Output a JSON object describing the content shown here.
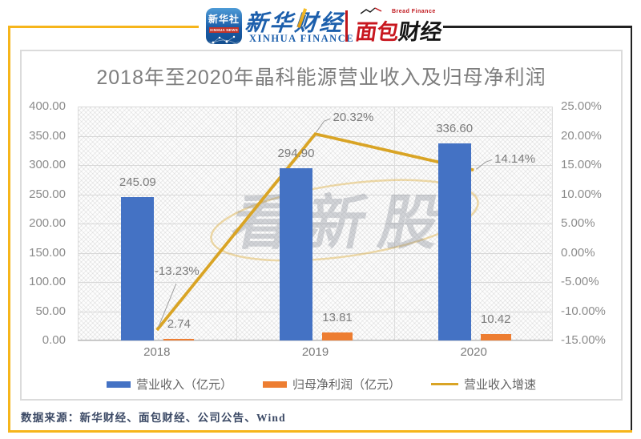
{
  "header": {
    "news_icon": {
      "cn": "新华社",
      "en": "XINHUA NEWS"
    },
    "finance_logo": {
      "cn": "新华财经",
      "en": "XINHUA FINANCE"
    },
    "bread_logo": {
      "tagline": "Bread Finance",
      "cn_red": "面包",
      "cn_black": "财经"
    }
  },
  "chart_data": {
    "type": "bar+line combo",
    "title": "2018年至2020年晶科能源营业收入及归母净利润",
    "categories": [
      "2018",
      "2019",
      "2020"
    ],
    "series": [
      {
        "name": "营业收入（亿元）",
        "type": "bar",
        "axis": "left",
        "color": "#4472C4",
        "values": [
          245.09,
          294.9,
          336.6
        ],
        "data_labels": [
          "245.09",
          "294.90",
          "336.60"
        ]
      },
      {
        "name": "归母净利润（亿元）",
        "type": "bar",
        "axis": "left",
        "color": "#ED7D31",
        "values": [
          2.74,
          13.81,
          10.42
        ],
        "data_labels": [
          "2.74",
          "13.81",
          "10.42"
        ]
      },
      {
        "name": "营业收入增速",
        "type": "line",
        "axis": "right",
        "color": "#D9A425",
        "values": [
          -13.23,
          20.32,
          14.14
        ],
        "data_labels": [
          "-13.23%",
          "20.32%",
          "14.14%"
        ]
      }
    ],
    "left_axis": {
      "min": 0,
      "max": 400,
      "ticks": [
        "400.00",
        "350.00",
        "300.00",
        "250.00",
        "200.00",
        "150.00",
        "100.00",
        "50.00",
        "0.00"
      ]
    },
    "right_axis": {
      "min": -15,
      "max": 25,
      "ticks": [
        "25.00%",
        "20.00%",
        "15.00%",
        "10.00%",
        "5.00%",
        "0.00%",
        "-5.00%",
        "-10.00%",
        "-15.00%"
      ]
    },
    "grid": true,
    "legend_position": "bottom",
    "plot_background": "diagonal-crosshatch"
  },
  "watermark": {
    "text": "看新股"
  },
  "footer": {
    "source": "数据来源：新华财经、面包财经、公司公告、Wind"
  },
  "colors": {
    "frame_gold": "#F6B51B",
    "frame_black": "#222222",
    "xinhua_blue": "#1C5FAC",
    "bread_red": "#C8161E",
    "grid": "#D8D8D8",
    "axis_text": "#8C8C8C",
    "title_text": "#7E7E7E",
    "data_label_text": "#7B7B7B",
    "footer_text": "#3B4965"
  }
}
